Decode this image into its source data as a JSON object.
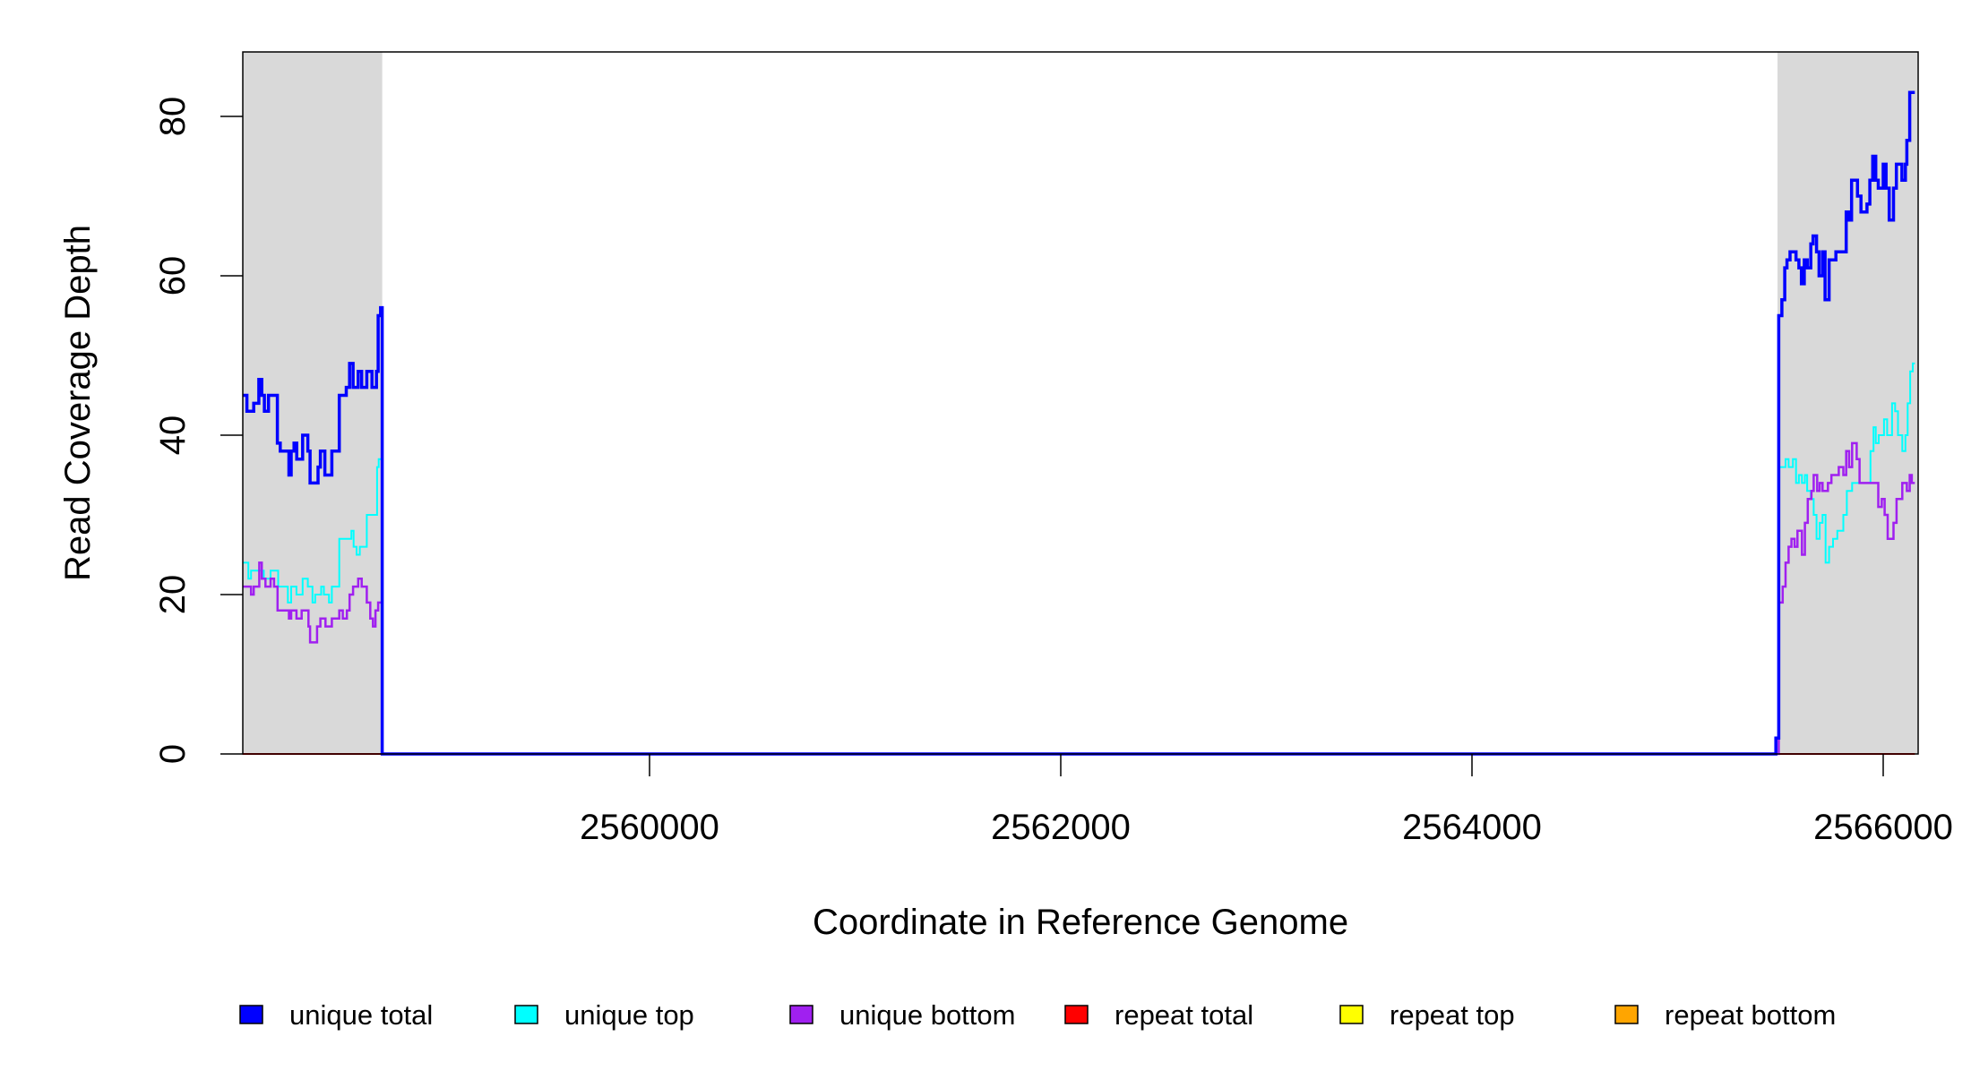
{
  "chart_data": {
    "type": "line",
    "step": true,
    "title": "",
    "xlabel": "Coordinate in Reference Genome",
    "ylabel": "Read Coverage Depth",
    "xlim": [
      2558022,
      2566166
    ],
    "ylim": [
      0,
      88
    ],
    "xticks": [
      2560000,
      2562000,
      2564000,
      2566000
    ],
    "xtick_labels": [
      "2560000",
      "2562000",
      "2564000",
      "2566000"
    ],
    "yticks": [
      0,
      20,
      40,
      60,
      80
    ],
    "ytick_labels": [
      "0",
      "20",
      "40",
      "60",
      "80"
    ],
    "grid": false,
    "legend_position": "bottom",
    "shaded_regions": [
      {
        "from": 2558022,
        "to": 2558700,
        "color": "#d9d9d9"
      },
      {
        "from": 2565486,
        "to": 2566166,
        "color": "#d9d9d9"
      }
    ],
    "x_end": 2566154,
    "series": [
      {
        "name": "unique total",
        "color": "#0000ff",
        "steps": [
          [
            2558022,
            45
          ],
          [
            2558042,
            43
          ],
          [
            2558075,
            44
          ],
          [
            2558100,
            47
          ],
          [
            2558114,
            45
          ],
          [
            2558127,
            43
          ],
          [
            2558147,
            45
          ],
          [
            2558190,
            39
          ],
          [
            2558204,
            38
          ],
          [
            2558246,
            35
          ],
          [
            2558257,
            38
          ],
          [
            2558271,
            39
          ],
          [
            2558284,
            37
          ],
          [
            2558313,
            40
          ],
          [
            2558338,
            38
          ],
          [
            2558349,
            34
          ],
          [
            2558388,
            36
          ],
          [
            2558399,
            38
          ],
          [
            2558421,
            35
          ],
          [
            2558455,
            38
          ],
          [
            2558491,
            45
          ],
          [
            2558525,
            46
          ],
          [
            2558541,
            49
          ],
          [
            2558558,
            46
          ],
          [
            2558583,
            48
          ],
          [
            2558600,
            46
          ],
          [
            2558625,
            48
          ],
          [
            2558650,
            46
          ],
          [
            2558672,
            48
          ],
          [
            2558680,
            55
          ],
          [
            2558692,
            56
          ],
          [
            2558700,
            0
          ],
          [
            2565478,
            2
          ],
          [
            2565492,
            55
          ],
          [
            2565507,
            57
          ],
          [
            2565521,
            61
          ],
          [
            2565532,
            62
          ],
          [
            2565547,
            63
          ],
          [
            2565576,
            62
          ],
          [
            2565590,
            61
          ],
          [
            2565602,
            59
          ],
          [
            2565616,
            62
          ],
          [
            2565631,
            61
          ],
          [
            2565648,
            64
          ],
          [
            2565659,
            65
          ],
          [
            2565676,
            63
          ],
          [
            2565688,
            60
          ],
          [
            2565705,
            63
          ],
          [
            2565717,
            57
          ],
          [
            2565737,
            62
          ],
          [
            2565770,
            63
          ],
          [
            2565820,
            68
          ],
          [
            2565834,
            67
          ],
          [
            2565846,
            72
          ],
          [
            2565875,
            70
          ],
          [
            2565892,
            68
          ],
          [
            2565921,
            69
          ],
          [
            2565935,
            72
          ],
          [
            2565949,
            75
          ],
          [
            2565964,
            72
          ],
          [
            2565976,
            71
          ],
          [
            2566000,
            74
          ],
          [
            2566014,
            71
          ],
          [
            2566029,
            67
          ],
          [
            2566050,
            71
          ],
          [
            2566064,
            74
          ],
          [
            2566091,
            72
          ],
          [
            2566108,
            74
          ],
          [
            2566115,
            77
          ],
          [
            2566129,
            83
          ]
        ]
      },
      {
        "name": "unique top",
        "color": "#00ffff",
        "steps": [
          [
            2558022,
            24
          ],
          [
            2558049,
            22
          ],
          [
            2558062,
            23
          ],
          [
            2558124,
            22
          ],
          [
            2558157,
            23
          ],
          [
            2558194,
            21
          ],
          [
            2558241,
            19
          ],
          [
            2558257,
            21
          ],
          [
            2558283,
            20
          ],
          [
            2558313,
            22
          ],
          [
            2558338,
            21
          ],
          [
            2558361,
            19
          ],
          [
            2558374,
            20
          ],
          [
            2558403,
            21
          ],
          [
            2558416,
            20
          ],
          [
            2558441,
            19
          ],
          [
            2558455,
            21
          ],
          [
            2558491,
            27
          ],
          [
            2558550,
            28
          ],
          [
            2558561,
            26
          ],
          [
            2558575,
            25
          ],
          [
            2558591,
            26
          ],
          [
            2558625,
            30
          ],
          [
            2558675,
            36
          ],
          [
            2558683,
            37
          ],
          [
            2558700,
            0
          ],
          [
            2565492,
            36
          ],
          [
            2565525,
            37
          ],
          [
            2565540,
            36
          ],
          [
            2565561,
            37
          ],
          [
            2565576,
            34
          ],
          [
            2565590,
            35
          ],
          [
            2565605,
            34
          ],
          [
            2565619,
            35
          ],
          [
            2565630,
            33
          ],
          [
            2565648,
            32
          ],
          [
            2565662,
            30
          ],
          [
            2565676,
            27
          ],
          [
            2565691,
            29
          ],
          [
            2565705,
            30
          ],
          [
            2565720,
            24
          ],
          [
            2565737,
            26
          ],
          [
            2565756,
            27
          ],
          [
            2565777,
            28
          ],
          [
            2565806,
            30
          ],
          [
            2565823,
            33
          ],
          [
            2565849,
            34
          ],
          [
            2565938,
            38
          ],
          [
            2565953,
            41
          ],
          [
            2565964,
            39
          ],
          [
            2565978,
            40
          ],
          [
            2566004,
            42
          ],
          [
            2566019,
            40
          ],
          [
            2566043,
            44
          ],
          [
            2566058,
            43
          ],
          [
            2566072,
            40
          ],
          [
            2566093,
            38
          ],
          [
            2566108,
            40
          ],
          [
            2566119,
            44
          ],
          [
            2566131,
            48
          ],
          [
            2566144,
            49
          ]
        ]
      },
      {
        "name": "unique bottom",
        "color": "#a020f0",
        "steps": [
          [
            2558022,
            21
          ],
          [
            2558062,
            20
          ],
          [
            2558075,
            21
          ],
          [
            2558102,
            24
          ],
          [
            2558114,
            22
          ],
          [
            2558132,
            21
          ],
          [
            2558157,
            22
          ],
          [
            2558174,
            21
          ],
          [
            2558191,
            18
          ],
          [
            2558246,
            17
          ],
          [
            2558257,
            18
          ],
          [
            2558283,
            17
          ],
          [
            2558308,
            18
          ],
          [
            2558341,
            16
          ],
          [
            2558349,
            14
          ],
          [
            2558383,
            16
          ],
          [
            2558399,
            17
          ],
          [
            2558424,
            16
          ],
          [
            2558455,
            17
          ],
          [
            2558491,
            18
          ],
          [
            2558508,
            17
          ],
          [
            2558528,
            18
          ],
          [
            2558541,
            20
          ],
          [
            2558558,
            21
          ],
          [
            2558583,
            22
          ],
          [
            2558600,
            21
          ],
          [
            2558625,
            19
          ],
          [
            2558642,
            17
          ],
          [
            2558655,
            16
          ],
          [
            2558667,
            18
          ],
          [
            2558680,
            19
          ],
          [
            2558700,
            0
          ],
          [
            2565492,
            19
          ],
          [
            2565511,
            21
          ],
          [
            2565525,
            24
          ],
          [
            2565540,
            26
          ],
          [
            2565554,
            27
          ],
          [
            2565569,
            26
          ],
          [
            2565583,
            28
          ],
          [
            2565605,
            25
          ],
          [
            2565619,
            29
          ],
          [
            2565633,
            32
          ],
          [
            2565651,
            33
          ],
          [
            2565662,
            35
          ],
          [
            2565679,
            33
          ],
          [
            2565691,
            34
          ],
          [
            2565705,
            33
          ],
          [
            2565731,
            34
          ],
          [
            2565748,
            35
          ],
          [
            2565784,
            36
          ],
          [
            2565806,
            35
          ],
          [
            2565820,
            38
          ],
          [
            2565834,
            36
          ],
          [
            2565849,
            39
          ],
          [
            2565871,
            37
          ],
          [
            2565885,
            34
          ],
          [
            2565976,
            31
          ],
          [
            2565993,
            32
          ],
          [
            2566007,
            30
          ],
          [
            2566022,
            27
          ],
          [
            2566050,
            29
          ],
          [
            2566065,
            32
          ],
          [
            2566079,
            32
          ],
          [
            2566093,
            34
          ],
          [
            2566115,
            33
          ],
          [
            2566129,
            35
          ],
          [
            2566139,
            34
          ]
        ]
      },
      {
        "name": "repeat total",
        "color": "#ff0000",
        "steps": [
          [
            2558022,
            0
          ]
        ]
      },
      {
        "name": "repeat top",
        "color": "#ffff00",
        "steps": [
          [
            2558022,
            0
          ]
        ]
      },
      {
        "name": "repeat bottom",
        "color": "#ffa500",
        "steps": [
          [
            2558022,
            0
          ]
        ]
      }
    ]
  }
}
